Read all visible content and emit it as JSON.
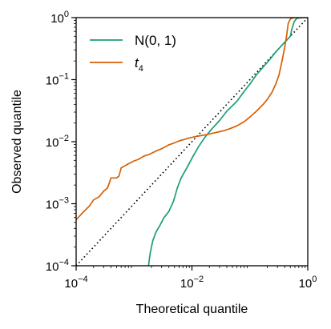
{
  "chart_data": {
    "type": "line",
    "xlabel": "Theoretical quantile",
    "ylabel": "Observed quantile",
    "xscale": "log",
    "yscale": "log",
    "xlim": [
      0.0001,
      1
    ],
    "ylim": [
      0.0001,
      1
    ],
    "grid": false,
    "legend_position": "top-left",
    "x_ticks": [
      {
        "value": 0.0001,
        "base": "10",
        "exp": "−4"
      },
      {
        "value": 0.01,
        "base": "10",
        "exp": "−2"
      },
      {
        "value": 1,
        "base": "10",
        "exp": "0"
      }
    ],
    "y_ticks": [
      {
        "value": 0.0001,
        "base": "10",
        "exp": "−4"
      },
      {
        "value": 0.001,
        "base": "10",
        "exp": "−3"
      },
      {
        "value": 0.01,
        "base": "10",
        "exp": "−2"
      },
      {
        "value": 0.1,
        "base": "10",
        "exp": "−1"
      },
      {
        "value": 1,
        "base": "10",
        "exp": "0"
      }
    ],
    "reference_line": {
      "style": "dotted",
      "color": "#000000",
      "x": [
        0.0001,
        1
      ],
      "y": [
        0.0001,
        1
      ]
    },
    "series": [
      {
        "name": "N(0, 1)",
        "color": "#1b9e77",
        "x": [
          0.00178,
          0.0019,
          0.0021,
          0.0024,
          0.0028,
          0.0033,
          0.004,
          0.0048,
          0.0056,
          0.0065,
          0.0075,
          0.0087,
          0.01,
          0.013,
          0.017,
          0.022,
          0.03,
          0.04,
          0.06,
          0.08,
          0.1,
          0.13,
          0.17,
          0.22,
          0.28,
          0.33,
          0.38,
          0.42,
          0.47,
          0.5,
          0.53,
          0.58,
          0.63,
          0.68,
          0.75,
          0.85,
          1.0
        ],
        "y": [
          0.0001,
          0.00016,
          0.00025,
          0.00035,
          0.00045,
          0.0006,
          0.00075,
          0.0011,
          0.0018,
          0.0026,
          0.0033,
          0.0042,
          0.0054,
          0.0083,
          0.012,
          0.016,
          0.022,
          0.031,
          0.045,
          0.065,
          0.085,
          0.12,
          0.16,
          0.21,
          0.28,
          0.33,
          0.38,
          0.42,
          0.47,
          0.5,
          0.65,
          0.85,
          0.95,
          0.98,
          0.99,
          1.0,
          1.0
        ]
      },
      {
        "name": "t4",
        "name_base": "t",
        "name_sub": "4",
        "color": "#d95f02",
        "x": [
          0.0001,
          0.00013,
          0.00017,
          0.0002,
          0.00025,
          0.0003,
          0.00035,
          0.0004,
          0.0005,
          0.00055,
          0.0006,
          0.0007,
          0.0008,
          0.001,
          0.0012,
          0.0015,
          0.0018,
          0.0022,
          0.0025,
          0.003,
          0.0035,
          0.004,
          0.005,
          0.006,
          0.0075,
          0.009,
          0.011,
          0.014,
          0.018,
          0.022,
          0.028,
          0.035,
          0.045,
          0.06,
          0.08,
          0.1,
          0.13,
          0.17,
          0.2,
          0.24,
          0.28,
          0.32,
          0.36,
          0.4,
          0.43,
          0.46,
          0.5,
          0.55,
          0.6,
          0.7,
          0.8,
          1.0
        ],
        "y": [
          0.00055,
          0.00072,
          0.00092,
          0.00115,
          0.0013,
          0.0016,
          0.0018,
          0.0026,
          0.0026,
          0.0028,
          0.0038,
          0.0041,
          0.0044,
          0.0049,
          0.0052,
          0.0059,
          0.0062,
          0.0068,
          0.0072,
          0.0077,
          0.0083,
          0.0089,
          0.0096,
          0.0103,
          0.0109,
          0.0115,
          0.012,
          0.0125,
          0.013,
          0.0136,
          0.0143,
          0.015,
          0.0162,
          0.018,
          0.021,
          0.025,
          0.031,
          0.04,
          0.048,
          0.062,
          0.085,
          0.12,
          0.2,
          0.33,
          0.5,
          0.8,
          0.95,
          0.99,
          1.0,
          1.0,
          1.0,
          1.0
        ]
      }
    ]
  }
}
